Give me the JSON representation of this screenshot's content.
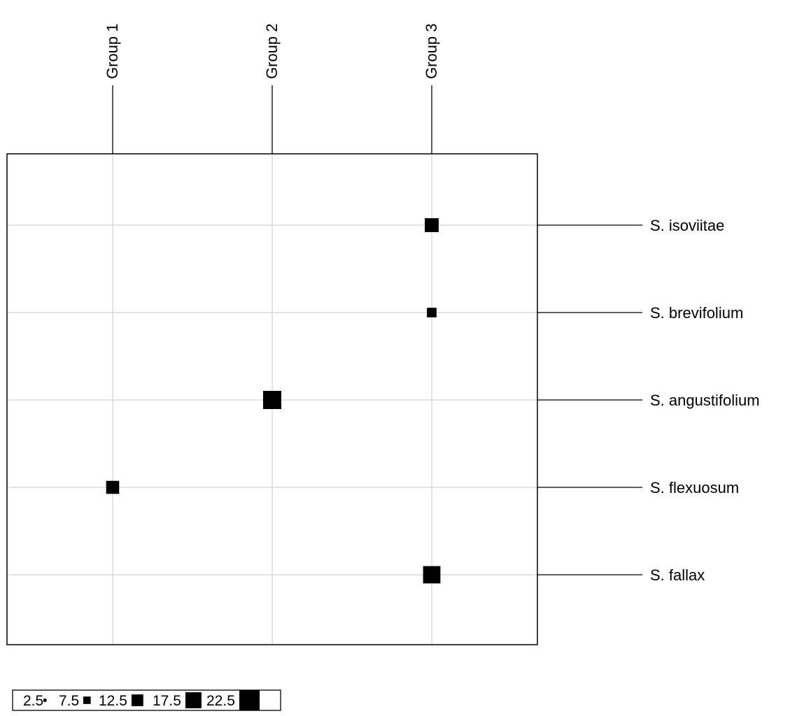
{
  "chart_data": {
    "type": "scatter",
    "title": "",
    "columns": [
      "Group 1",
      "Group 2",
      "Group 3"
    ],
    "rows": [
      "S. isoviitae",
      "S. brevifolium",
      "S. angustifolium",
      "S. flexuosum",
      "S. fallax"
    ],
    "points": [
      {
        "row": "S. isoviitae",
        "column": "Group 3",
        "value": 15
      },
      {
        "row": "S. brevifolium",
        "column": "Group 3",
        "value": 10
      },
      {
        "row": "S. angustifolium",
        "column": "Group 2",
        "value": 20
      },
      {
        "row": "S. flexuosum",
        "column": "Group 1",
        "value": 14
      },
      {
        "row": "S. fallax",
        "column": "Group 3",
        "value": 19
      }
    ],
    "legend": {
      "placement": "bottom-left",
      "entries": [
        {
          "label": "2.5",
          "value": 2.5
        },
        {
          "label": "7.5",
          "value": 7.5
        },
        {
          "label": "12.5",
          "value": 12.5
        },
        {
          "label": "17.5",
          "value": 17.5
        },
        {
          "label": "22.5",
          "value": 22.5
        }
      ]
    },
    "grid": true,
    "colors": {
      "marker": "#000000",
      "grid": "#d3d3d3",
      "frame": "#000000"
    }
  }
}
